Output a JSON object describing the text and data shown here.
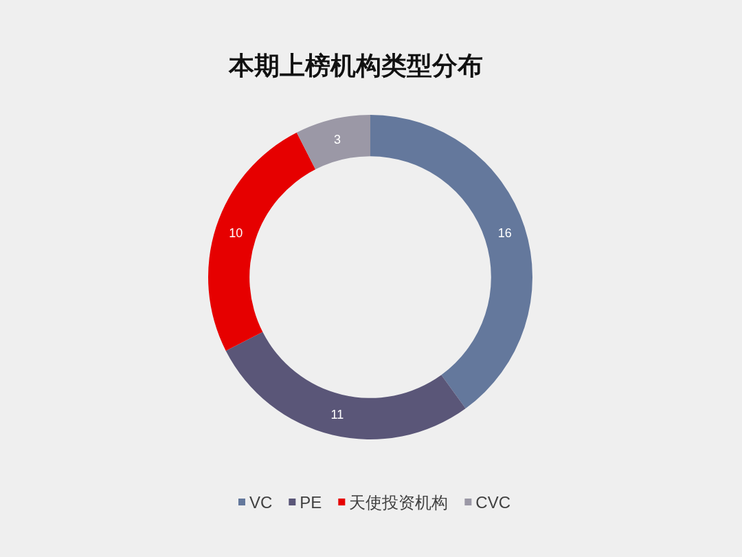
{
  "chart_data": {
    "type": "donut",
    "title": "本期上榜机构类型分布",
    "categories": [
      "VC",
      "PE",
      "天使投资机构",
      "CVC"
    ],
    "values": [
      16,
      11,
      10,
      3
    ],
    "colors": [
      "#64789c",
      "#5a5678",
      "#e60000",
      "#9b98a6"
    ],
    "data_labels": true,
    "legend": "bottom"
  }
}
